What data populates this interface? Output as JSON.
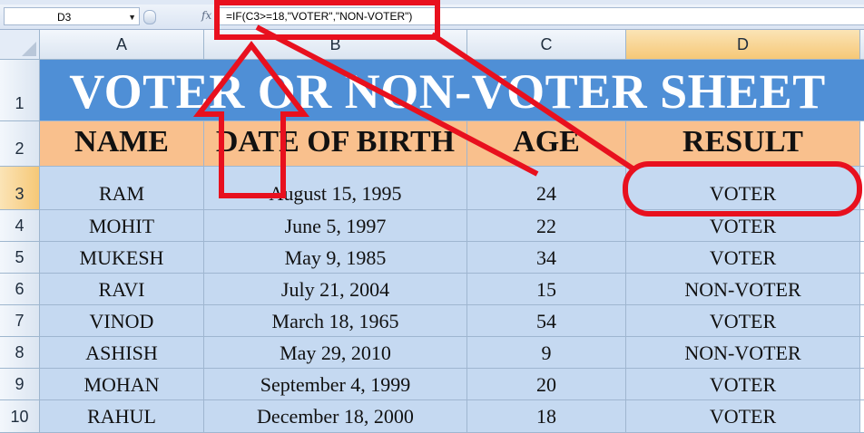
{
  "name_box": "D3",
  "fx_label": "fx",
  "formula": "=IF(C3>=18,\"VOTER\",\"NON-VOTER\")",
  "column_headers": [
    "A",
    "B",
    "C",
    "D"
  ],
  "row_numbers": [
    "1",
    "2",
    "3",
    "4",
    "5",
    "6",
    "7",
    "8",
    "9",
    "10"
  ],
  "sheet_title": "VOTER OR NON-VOTER SHEET",
  "table_headers": [
    "NAME",
    "DATE OF BIRTH",
    "AGE",
    "RESULT"
  ],
  "rows": [
    [
      "RAM",
      "August 15, 1995",
      "24",
      "VOTER"
    ],
    [
      "MOHIT",
      "June 5, 1997",
      "22",
      "VOTER"
    ],
    [
      "MUKESH",
      "May 9, 1985",
      "34",
      "VOTER"
    ],
    [
      "RAVI",
      "July 21, 2004",
      "15",
      "NON-VOTER"
    ],
    [
      "VINOD",
      "March 18, 1965",
      "54",
      "VOTER"
    ],
    [
      "ASHISH",
      "May 29, 2010",
      "9",
      "NON-VOTER"
    ],
    [
      "MOHAN",
      "September 4, 1999",
      "20",
      "VOTER"
    ],
    [
      "RAHUL",
      "December 18, 2000",
      "18",
      "VOTER"
    ]
  ],
  "colors": {
    "title_fill": "#4f8fd6",
    "header_fill": "#f9c08d",
    "data_fill": "#c5d9f1",
    "annotation": "#e8101e",
    "selected_header": "#f6c877"
  },
  "selected_cell": "D3",
  "icons": [
    "dropdown-arrow-icon",
    "function-icon",
    "select-all-icon"
  ]
}
